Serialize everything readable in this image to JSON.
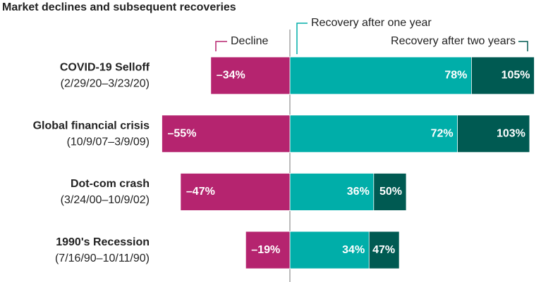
{
  "chart_data": {
    "type": "diverging-bar",
    "title": "Market declines and subsequent recoveries",
    "categories": [
      "COVID-19 Selloff",
      "Global financial crisis",
      "Dot-com crash",
      "1990's Recession"
    ],
    "category_dates": [
      "(2/29/20–3/23/20)",
      "(10/9/07–3/9/09)",
      "(3/24/00–10/9/02)",
      "(7/16/90–10/11/90)"
    ],
    "series": [
      {
        "name": "Recovery after two years",
        "color": "#005a52",
        "values": [
          105,
          103,
          50,
          47
        ],
        "value_labels": [
          "105%",
          "103%",
          "50%",
          "47%"
        ]
      },
      {
        "name": "Recovery after one year",
        "color": "#00aea9",
        "values": [
          78,
          72,
          36,
          34
        ],
        "value_labels": [
          "78%",
          "72%",
          "36%",
          "34%"
        ]
      },
      {
        "name": "Decline",
        "color": "#b5246f",
        "values": [
          -34,
          -55,
          -47,
          -19
        ],
        "value_labels": [
          "–34%",
          "–55%",
          "–47%",
          "–19%"
        ]
      }
    ]
  }
}
